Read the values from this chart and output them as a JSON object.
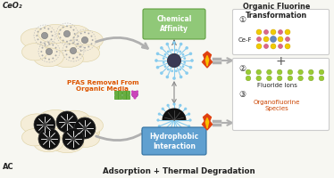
{
  "bg_color": "#f7f7f2",
  "title_bottom": "Adsorption + Thermal Degradation",
  "label_ceo2": "CeO₂",
  "label_ac": "AC",
  "label_pfas_line1": "PFAS Removal From",
  "label_pfas_line2": "Organic Media",
  "label_chem": "Chemical\nAffinity",
  "label_hydro": "Hydrophobic\nInteraction",
  "label_organic": "Organic Fluorine\nTransformation",
  "label_cef": "Ce-F",
  "label_1": "①",
  "label_2": "②",
  "label_3": "③",
  "label_fluoride": "Fluoride Ions",
  "label_organo": "Organofluorine\nSpecies",
  "cloud_fill": "#f5edd8",
  "cloud_edge": "#ddd0a0",
  "ceo2_ring": "#bbbbbb",
  "ceo2_center": "#999999",
  "ceo2_dot": "#aaaaaa",
  "ac_fill": "#111111",
  "ac_edge": "#333333",
  "pfas_green": "#6ab040",
  "pfas_purple": "#cc44bb",
  "arrow_gray": "#b0b0b0",
  "flame_red": "#e04010",
  "flame_yellow": "#f8c000",
  "chem_fill": "#90c878",
  "chem_edge": "#60a040",
  "hydro_fill": "#60a0d0",
  "hydro_edge": "#3070a0",
  "star_ray": "#88ccee",
  "star_center": "#3a3a55",
  "ac_complex_fill": "#111111",
  "result_box_fill": "#ffffff",
  "result_box_edge": "#cccccc",
  "atom_yellow": "#f0cc00",
  "atom_red": "#cc3333",
  "atom_blue": "#6688bb",
  "atom_pink": "#dd6688",
  "fluoride_green": "#99cc33",
  "organo_color": "#cc4400",
  "plus_color": "#555555",
  "text_dark": "#222222",
  "pfas_text_color": "#dd5500"
}
